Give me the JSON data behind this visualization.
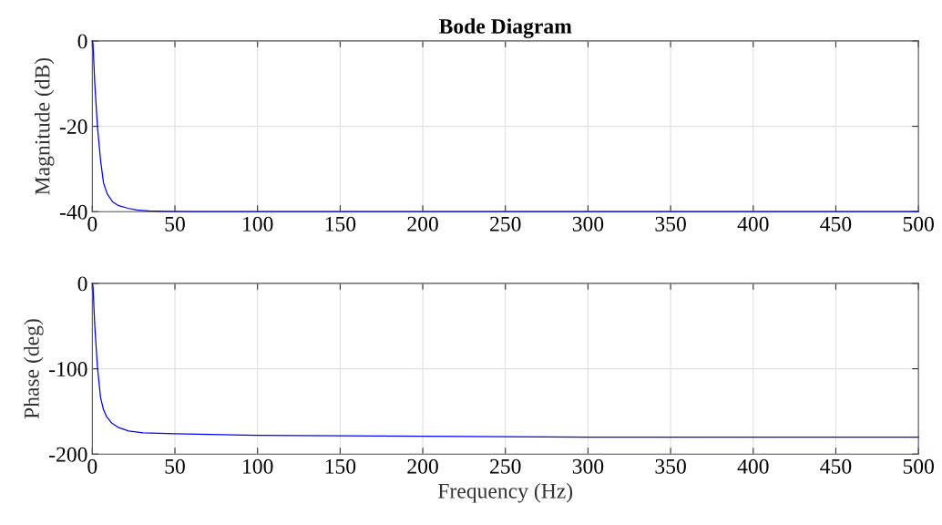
{
  "chart_data": [
    {
      "type": "line",
      "title": "Bode Diagram",
      "ylabel": "Magnitude (dB)",
      "x": [
        0,
        0.4,
        1.5,
        3.1,
        5,
        6.8,
        9,
        12.3,
        16,
        21.5,
        27,
        34,
        45,
        60,
        100,
        200,
        300,
        400,
        500
      ],
      "series": [
        {
          "color": "#0000ff",
          "values": [
            0,
            -0.5,
            -10,
            -20,
            -28,
            -33.3,
            -35.8,
            -37.7,
            -38.6,
            -39.2,
            -39.6,
            -39.8,
            -39.9,
            -40,
            -40,
            -40,
            -40,
            -40,
            -40
          ]
        }
      ],
      "xlim": [
        0,
        500
      ],
      "xticks": [
        0,
        50,
        100,
        150,
        200,
        250,
        300,
        350,
        400,
        450,
        500
      ],
      "ylim": [
        -40,
        0
      ],
      "yticks": [
        -40,
        -20,
        0
      ],
      "grid": true
    },
    {
      "type": "line",
      "xlabel": "Frequency (Hz)",
      "ylabel": "Phase (deg)",
      "x": [
        0,
        0.4,
        1.5,
        3.1,
        5,
        6.8,
        8.6,
        12,
        16,
        22,
        30.7,
        50,
        100,
        200,
        300,
        400,
        500
      ],
      "series": [
        {
          "color": "#0000ff",
          "values": [
            0,
            -3,
            -50,
            -98,
            -134,
            -148,
            -156,
            -164,
            -169,
            -173,
            -175,
            -176,
            -178,
            -179,
            -180,
            -180,
            -180
          ]
        }
      ],
      "xlim": [
        0,
        500
      ],
      "xticks": [
        0,
        50,
        100,
        150,
        200,
        250,
        300,
        350,
        400,
        450,
        500
      ],
      "ylim": [
        -200,
        0
      ],
      "yticks": [
        -200,
        -100,
        0
      ],
      "grid": true
    }
  ]
}
